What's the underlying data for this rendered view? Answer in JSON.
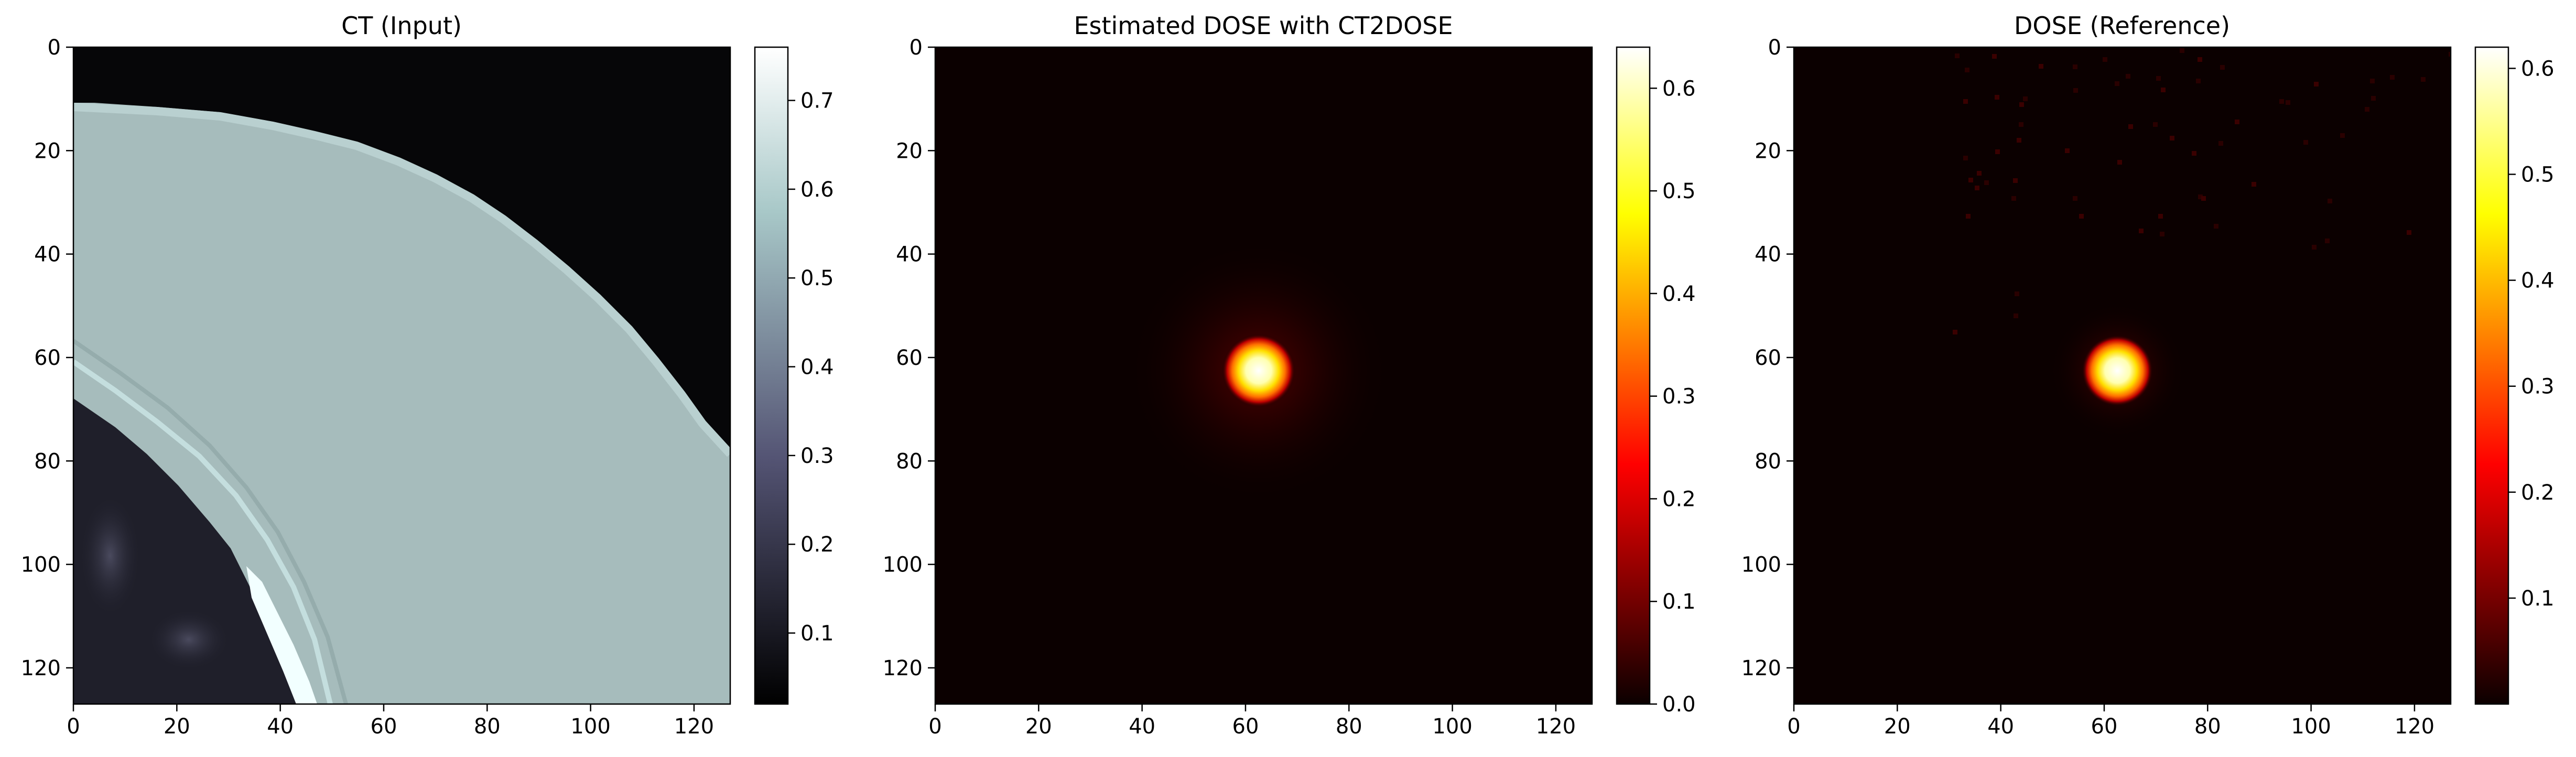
{
  "chart_data": [
    {
      "type": "heatmap",
      "title": "CT (Input)",
      "colormap": "bone",
      "x_ticks": [
        0,
        20,
        40,
        60,
        80,
        100,
        120
      ],
      "y_ticks": [
        0,
        20,
        40,
        60,
        80,
        100,
        120
      ],
      "xlim": [
        0,
        127
      ],
      "ylim": [
        127,
        0
      ],
      "colorbar": {
        "ticks": [
          0.1,
          0.2,
          0.3,
          0.4,
          0.5,
          0.6,
          0.7
        ],
        "range": [
          0.02,
          0.76
        ]
      },
      "grid": false
    },
    {
      "type": "heatmap",
      "title": "Estimated DOSE with CT2DOSE",
      "colormap": "hot",
      "x_ticks": [
        0,
        20,
        40,
        60,
        80,
        100,
        120
      ],
      "y_ticks": [
        0,
        20,
        40,
        60,
        80,
        100,
        120
      ],
      "xlim": [
        0,
        127
      ],
      "ylim": [
        127,
        0
      ],
      "colorbar": {
        "ticks": [
          0.0,
          0.1,
          0.2,
          0.3,
          0.4,
          0.5,
          0.6
        ],
        "range": [
          0.0,
          0.64
        ]
      },
      "hotspot": {
        "x": 63,
        "y": 63,
        "peak": 0.64
      },
      "grid": false
    },
    {
      "type": "heatmap",
      "title": "DOSE (Reference)",
      "colormap": "hot",
      "x_ticks": [
        0,
        20,
        40,
        60,
        80,
        100,
        120
      ],
      "y_ticks": [
        0,
        20,
        40,
        60,
        80,
        100,
        120
      ],
      "xlim": [
        0,
        127
      ],
      "ylim": [
        127,
        0
      ],
      "colorbar": {
        "ticks": [
          0.1,
          0.2,
          0.3,
          0.4,
          0.5,
          0.6
        ],
        "range": [
          0.0,
          0.62
        ]
      },
      "hotspot": {
        "x": 63,
        "y": 63,
        "peak": 0.62
      },
      "grid": false
    }
  ],
  "colors": {
    "bone_stops": [
      "#000000",
      "#545474",
      "#a8c8c8",
      "#ffffff"
    ],
    "hot_stops": [
      "#0b0000",
      "#ff0000",
      "#ffff00",
      "#ffffff"
    ]
  }
}
